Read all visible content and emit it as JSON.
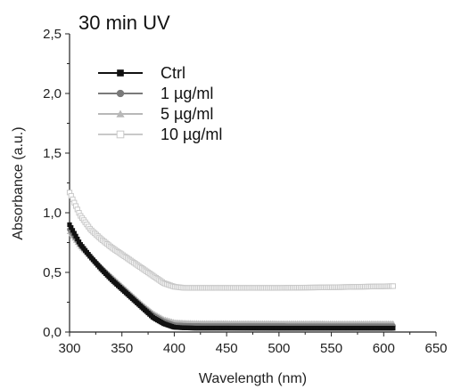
{
  "chart_data": {
    "type": "scatter",
    "title": "30 min UV",
    "xlabel": "Wavelength (nm)",
    "ylabel": "Absorbance (a.u.)",
    "xlim": [
      300,
      650
    ],
    "ylim": [
      0.0,
      2.5
    ],
    "x_ticks": [
      300,
      350,
      400,
      450,
      500,
      550,
      600,
      650
    ],
    "y_ticks": [
      0.0,
      0.5,
      1.0,
      1.5,
      2.0,
      2.5
    ],
    "x_tick_labels": [
      "300",
      "350",
      "400",
      "450",
      "500",
      "550",
      "600",
      "650"
    ],
    "y_tick_labels": [
      "0,0",
      "0,5",
      "1,0",
      "1,5",
      "2,0",
      "2,5"
    ],
    "grid": false,
    "legend_position": "top-left",
    "series": [
      {
        "name": "Ctrl",
        "marker": "square-filled",
        "color": "#111111",
        "x": [
          300,
          310,
          320,
          330,
          340,
          350,
          360,
          370,
          380,
          390,
          400,
          410,
          420,
          450,
          500,
          550,
          610
        ],
        "y": [
          0.9,
          0.74,
          0.63,
          0.53,
          0.44,
          0.36,
          0.28,
          0.2,
          0.12,
          0.07,
          0.04,
          0.035,
          0.033,
          0.033,
          0.032,
          0.032,
          0.032
        ]
      },
      {
        "name": "1 µg/ml",
        "marker": "circle-filled",
        "color": "#7a7a7a",
        "x": [
          300,
          310,
          320,
          330,
          340,
          350,
          360,
          370,
          380,
          390,
          400,
          410,
          420,
          450,
          500,
          550,
          610
        ],
        "y": [
          0.86,
          0.73,
          0.63,
          0.54,
          0.45,
          0.37,
          0.29,
          0.21,
          0.14,
          0.09,
          0.06,
          0.055,
          0.053,
          0.052,
          0.052,
          0.051,
          0.051
        ]
      },
      {
        "name": "5 µg/ml",
        "marker": "triangle-filled",
        "color": "#b8b8b8",
        "x": [
          300,
          310,
          320,
          330,
          340,
          350,
          360,
          370,
          380,
          390,
          400,
          410,
          420,
          450,
          500,
          550,
          610
        ],
        "y": [
          0.84,
          0.72,
          0.63,
          0.55,
          0.47,
          0.39,
          0.31,
          0.23,
          0.16,
          0.11,
          0.085,
          0.08,
          0.078,
          0.077,
          0.076,
          0.075,
          0.075
        ]
      },
      {
        "name": "10 µg/ml",
        "marker": "square-open",
        "color": "#c9c9c9",
        "x": [
          300,
          310,
          320,
          330,
          340,
          350,
          360,
          370,
          380,
          390,
          400,
          410,
          420,
          450,
          500,
          550,
          610
        ],
        "y": [
          1.17,
          0.98,
          0.86,
          0.78,
          0.71,
          0.65,
          0.59,
          0.53,
          0.47,
          0.41,
          0.38,
          0.37,
          0.37,
          0.37,
          0.37,
          0.375,
          0.385
        ]
      }
    ]
  }
}
